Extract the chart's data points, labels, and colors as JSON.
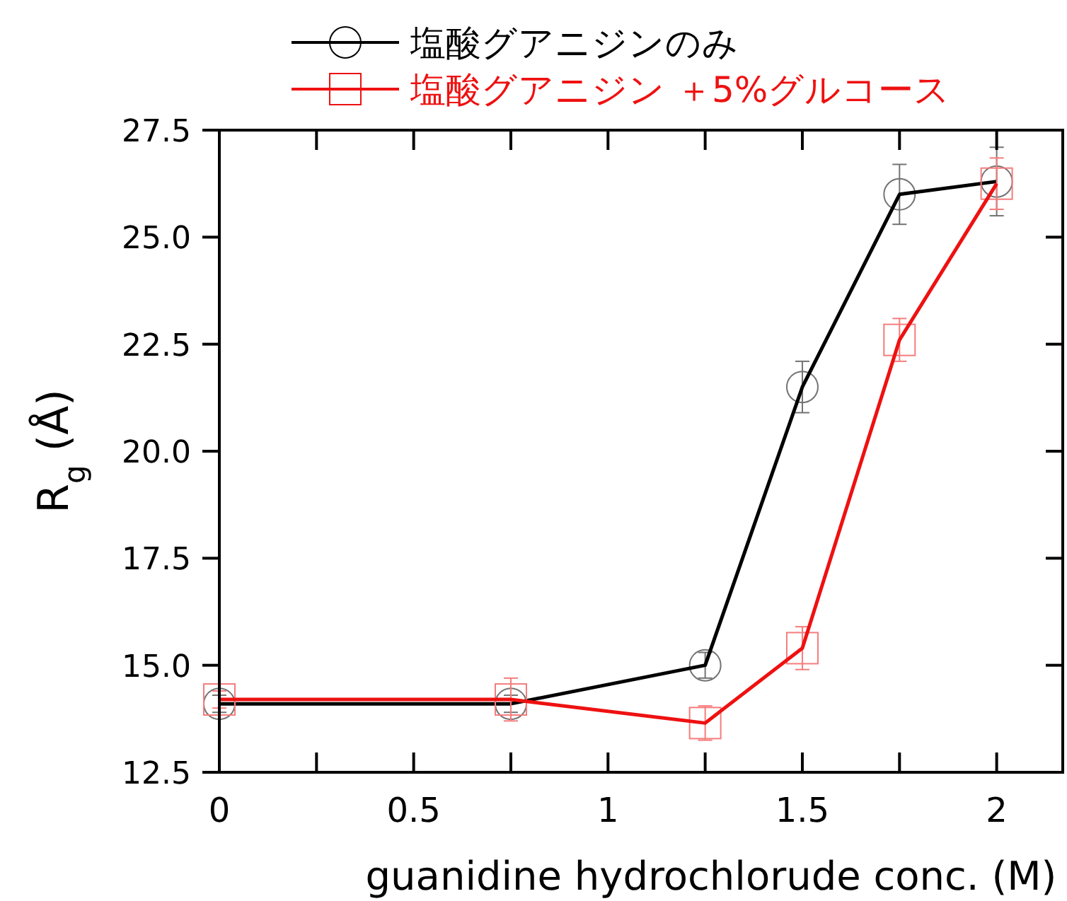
{
  "chart_data": {
    "type": "line",
    "xlabel": "guanidine hydrochlorude conc. (M)",
    "ylabel": "R$_{g}$ (Å)",
    "x": [
      0,
      0.75,
      1.25,
      1.5,
      1.75,
      2
    ],
    "series": [
      {
        "name": "塩酸グアニジンのみ",
        "color": "#000000",
        "marker": "circle",
        "values": [
          14.1,
          14.1,
          15.0,
          21.5,
          26.0,
          26.3
        ],
        "errors": [
          0.2,
          0.2,
          0.3,
          0.6,
          0.7,
          0.8
        ]
      },
      {
        "name": "塩酸グアニジン ＋5%グルコース",
        "color": "#ee1111",
        "marker": "square",
        "values": [
          14.2,
          14.2,
          13.65,
          15.4,
          22.6,
          26.25
        ],
        "errors": [
          0.2,
          0.5,
          0.4,
          0.5,
          0.5,
          0.6
        ]
      }
    ],
    "xlim": [
      0,
      2.17
    ],
    "xticks": [
      0,
      0.5,
      1,
      1.5,
      2
    ],
    "ylim": [
      12.5,
      27.5
    ],
    "yticks": [
      12.5,
      {
        "value": 15,
        "label": "15.0"
      },
      17.5,
      {
        "value": 20,
        "label": "20.0"
      },
      22.5,
      {
        "value": 25,
        "label": "25.0"
      },
      27.5
    ],
    "grid": false,
    "legend": "top",
    "line_style": "solid"
  }
}
